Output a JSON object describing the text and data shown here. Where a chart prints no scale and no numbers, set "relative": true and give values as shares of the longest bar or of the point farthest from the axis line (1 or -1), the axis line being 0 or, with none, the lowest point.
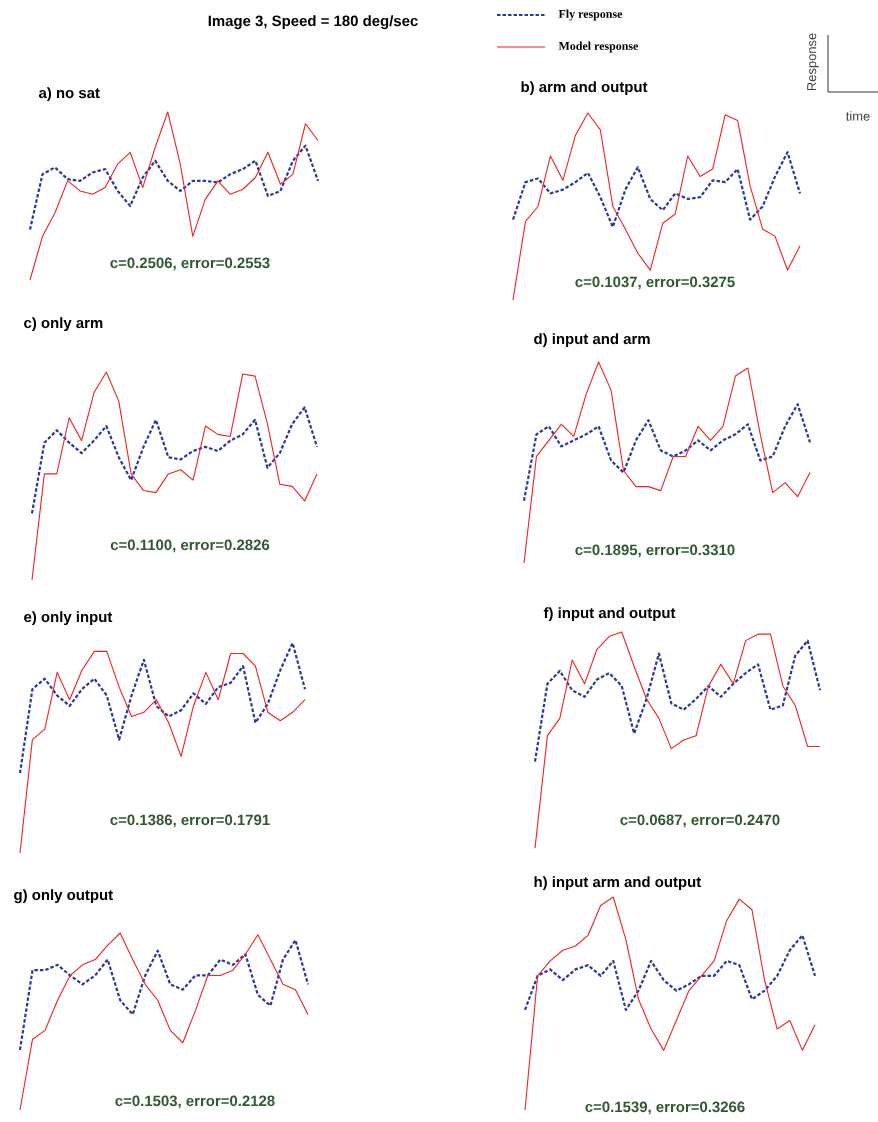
{
  "chart_data": [
    {
      "type": "line",
      "relative": true,
      "title": "Image 3,  Speed = 180 deg/sec",
      "subtitle": "a) no sat",
      "annotations": [
        "c=0.2506,  error=0.2553"
      ],
      "categories": [
        null,
        null,
        null,
        null,
        null,
        null,
        null,
        null,
        null,
        null,
        null,
        null,
        null,
        null,
        null,
        null,
        null,
        null,
        null,
        null,
        null,
        null,
        null,
        null
      ],
      "series": [
        {
          "color": "#2b3a9a",
          "line_style": "dashed",
          "values": [
            0.3,
            0.63,
            0.67,
            0.6,
            0.59,
            0.64,
            0.66,
            0.53,
            0.44,
            0.61,
            0.71,
            0.59,
            0.53,
            0.59,
            0.59,
            0.58,
            0.63,
            0.66,
            0.71,
            0.5,
            0.53,
            0.71,
            0.8,
            0.59
          ]
        },
        {
          "color": "#ee2222",
          "line_style": "solid",
          "values": [
            0,
            0.26,
            0.4,
            0.59,
            0.53,
            0.51,
            0.55,
            0.69,
            0.76,
            0.55,
            0.79,
            1.0,
            0.69,
            0.26,
            0.48,
            0.59,
            0.51,
            0.54,
            0.61,
            0.76,
            0.57,
            0.63,
            0.93,
            0.83
          ]
        }
      ]
    },
    {
      "type": "line",
      "relative": true,
      "title": "b) arm and output",
      "annotations": [
        "c=0.1037,  error=0.3275"
      ],
      "xlabel": "time",
      "ylabel": "Response",
      "legend": "top left",
      "categories": [
        null,
        null,
        null,
        null,
        null,
        null,
        null,
        null,
        null,
        null,
        null,
        null,
        null,
        null,
        null,
        null,
        null,
        null,
        null,
        null,
        null,
        null,
        null,
        null
      ],
      "series": [
        {
          "name": "Fly response",
          "color": "#2b3a9a",
          "line_style": "dashed",
          "values": [
            0.43,
            0.63,
            0.65,
            0.57,
            0.59,
            0.63,
            0.68,
            0.55,
            0.39,
            0.59,
            0.71,
            0.54,
            0.48,
            0.57,
            0.54,
            0.55,
            0.64,
            0.63,
            0.7,
            0.43,
            0.5,
            0.66,
            0.79,
            0.57
          ]
        },
        {
          "name": "Model response",
          "color": "#ee2222",
          "line_style": "solid",
          "values": [
            0,
            0.42,
            0.5,
            0.77,
            0.64,
            0.88,
            1.0,
            0.91,
            0.5,
            0.38,
            0.25,
            0.16,
            0.41,
            0.46,
            0.77,
            0.66,
            0.7,
            0.99,
            0.96,
            0.61,
            0.38,
            0.34,
            0.16,
            0.29
          ]
        }
      ]
    },
    {
      "type": "line",
      "relative": true,
      "title": "c) only arm",
      "annotations": [
        "c=0.1100,  error=0.2826"
      ],
      "categories": [
        null,
        null,
        null,
        null,
        null,
        null,
        null,
        null,
        null,
        null,
        null,
        null,
        null,
        null,
        null,
        null,
        null,
        null,
        null,
        null,
        null,
        null,
        null,
        null
      ],
      "series": [
        {
          "color": "#2b3a9a",
          "line_style": "dashed",
          "values": [
            0.32,
            0.66,
            0.72,
            0.66,
            0.61,
            0.67,
            0.74,
            0.59,
            0.48,
            0.64,
            0.77,
            0.59,
            0.58,
            0.62,
            0.64,
            0.62,
            0.67,
            0.7,
            0.77,
            0.54,
            0.61,
            0.75,
            0.83,
            0.64
          ]
        },
        {
          "color": "#ee2222",
          "line_style": "solid",
          "values": [
            0,
            0.51,
            0.51,
            0.78,
            0.67,
            0.9,
            1.0,
            0.86,
            0.51,
            0.43,
            0.42,
            0.51,
            0.53,
            0.48,
            0.74,
            0.7,
            0.69,
            0.99,
            0.98,
            0.75,
            0.46,
            0.45,
            0.38,
            0.51
          ]
        }
      ]
    },
    {
      "type": "line",
      "relative": true,
      "title": "d)  input and arm",
      "annotations": [
        "c=0.1895,  error=0.3310"
      ],
      "categories": [
        null,
        null,
        null,
        null,
        null,
        null,
        null,
        null,
        null,
        null,
        null,
        null,
        null,
        null,
        null,
        null,
        null,
        null,
        null,
        null,
        null,
        null,
        null,
        null
      ],
      "series": [
        {
          "color": "#2b3a9a",
          "line_style": "dashed",
          "values": [
            0.31,
            0.64,
            0.68,
            0.58,
            0.61,
            0.64,
            0.68,
            0.51,
            0.45,
            0.61,
            0.71,
            0.56,
            0.53,
            0.56,
            0.61,
            0.56,
            0.61,
            0.64,
            0.69,
            0.51,
            0.53,
            0.68,
            0.79,
            0.6
          ]
        },
        {
          "color": "#ee2222",
          "line_style": "solid",
          "values": [
            0,
            0.53,
            0.61,
            0.69,
            0.63,
            0.84,
            1.0,
            0.86,
            0.46,
            0.38,
            0.38,
            0.36,
            0.53,
            0.53,
            0.68,
            0.61,
            0.68,
            0.93,
            0.97,
            0.64,
            0.35,
            0.4,
            0.33,
            0.45
          ]
        }
      ]
    },
    {
      "type": "line",
      "relative": true,
      "title": "e)  only input",
      "annotations": [
        "c=0.1386,  error=0.1791"
      ],
      "categories": [
        null,
        null,
        null,
        null,
        null,
        null,
        null,
        null,
        null,
        null,
        null,
        null,
        null,
        null,
        null,
        null,
        null,
        null,
        null,
        null,
        null,
        null,
        null,
        null
      ],
      "series": [
        {
          "color": "#2b3a9a",
          "line_style": "dashed",
          "values": [
            0.38,
            0.78,
            0.83,
            0.75,
            0.7,
            0.78,
            0.83,
            0.75,
            0.54,
            0.75,
            0.92,
            0.7,
            0.65,
            0.68,
            0.76,
            0.71,
            0.79,
            0.81,
            0.89,
            0.62,
            0.71,
            0.87,
            1.0,
            0.78
          ]
        },
        {
          "color": "#ee2222",
          "line_style": "solid",
          "values": [
            0,
            0.54,
            0.59,
            0.86,
            0.73,
            0.87,
            0.96,
            0.96,
            0.79,
            0.65,
            0.67,
            0.73,
            0.62,
            0.46,
            0.7,
            0.86,
            0.73,
            0.95,
            0.95,
            0.89,
            0.67,
            0.63,
            0.67,
            0.73
          ]
        }
      ]
    },
    {
      "type": "line",
      "relative": true,
      "title": "f)  input and output",
      "annotations": [
        "c=0.0687,  error=0.2470"
      ],
      "categories": [
        null,
        null,
        null,
        null,
        null,
        null,
        null,
        null,
        null,
        null,
        null,
        null,
        null,
        null,
        null,
        null,
        null,
        null,
        null,
        null,
        null,
        null,
        null,
        null
      ],
      "series": [
        {
          "color": "#2b3a9a",
          "line_style": "dashed",
          "values": [
            0.4,
            0.76,
            0.82,
            0.73,
            0.7,
            0.78,
            0.81,
            0.75,
            0.53,
            0.69,
            0.9,
            0.67,
            0.64,
            0.69,
            0.75,
            0.7,
            0.76,
            0.81,
            0.85,
            0.64,
            0.66,
            0.89,
            0.96,
            0.73
          ]
        },
        {
          "color": "#ee2222",
          "line_style": "solid",
          "values": [
            0,
            0.52,
            0.6,
            0.87,
            0.76,
            0.92,
            0.98,
            1.0,
            0.84,
            0.69,
            0.6,
            0.46,
            0.5,
            0.52,
            0.75,
            0.85,
            0.76,
            0.96,
            0.99,
            0.99,
            0.75,
            0.66,
            0.47,
            0.47
          ]
        }
      ]
    },
    {
      "type": "line",
      "relative": true,
      "title": "g)  only output",
      "annotations": [
        "c=0.1503,  error=0.2128"
      ],
      "categories": [
        null,
        null,
        null,
        null,
        null,
        null,
        null,
        null,
        null,
        null,
        null,
        null,
        null,
        null,
        null,
        null,
        null,
        null,
        null,
        null,
        null,
        null,
        null,
        null
      ],
      "series": [
        {
          "color": "#2b3a9a",
          "line_style": "dashed",
          "values": [
            0.34,
            0.79,
            0.79,
            0.82,
            0.76,
            0.71,
            0.76,
            0.85,
            0.62,
            0.54,
            0.76,
            0.9,
            0.71,
            0.68,
            0.76,
            0.76,
            0.85,
            0.82,
            0.88,
            0.65,
            0.59,
            0.85,
            0.96,
            0.71
          ]
        },
        {
          "color": "#ee2222",
          "line_style": "solid",
          "values": [
            0,
            0.4,
            0.45,
            0.62,
            0.76,
            0.82,
            0.85,
            0.93,
            1.0,
            0.85,
            0.71,
            0.62,
            0.45,
            0.38,
            0.56,
            0.76,
            0.76,
            0.79,
            0.88,
            0.99,
            0.85,
            0.71,
            0.68,
            0.54
          ]
        }
      ]
    },
    {
      "type": "line",
      "relative": true,
      "title": "h)  input arm and output",
      "annotations": [
        "c=0.1539,  error=0.3266"
      ],
      "categories": [
        null,
        null,
        null,
        null,
        null,
        null,
        null,
        null,
        null,
        null,
        null,
        null,
        null,
        null,
        null,
        null,
        null,
        null,
        null,
        null,
        null,
        null,
        null,
        null
      ],
      "series": [
        {
          "color": "#2b3a9a",
          "line_style": "dashed",
          "values": [
            0.47,
            0.63,
            0.66,
            0.61,
            0.66,
            0.68,
            0.63,
            0.7,
            0.47,
            0.56,
            0.7,
            0.61,
            0.56,
            0.59,
            0.63,
            0.63,
            0.7,
            0.68,
            0.52,
            0.56,
            0.63,
            0.75,
            0.82,
            0.63
          ]
        },
        {
          "color": "#ee2222",
          "line_style": "solid",
          "values": [
            0,
            0.63,
            0.7,
            0.75,
            0.77,
            0.82,
            0.96,
            1.0,
            0.8,
            0.52,
            0.38,
            0.28,
            0.42,
            0.56,
            0.63,
            0.7,
            0.89,
            0.99,
            0.94,
            0.61,
            0.38,
            0.42,
            0.28,
            0.4
          ]
        }
      ]
    }
  ]
}
